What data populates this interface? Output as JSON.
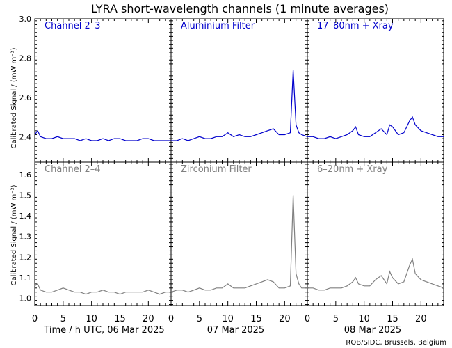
{
  "title": "LYRA short-wavelength channels (1 minute averages)",
  "ylabel": "Calibrated Signal / (mW m⁻²)",
  "credit": "ROB/SIDC, Brussels, Belgium",
  "colors": {
    "top": "#0000cc",
    "bottom": "#808080",
    "axis": "#000000"
  },
  "days": [
    {
      "label": "Time / h UTC, 06 Mar 2025"
    },
    {
      "label": "07 Mar 2025"
    },
    {
      "label": "08 Mar 2025"
    }
  ],
  "chart_data": [
    {
      "type": "line",
      "row": "top",
      "ylim": [
        2.27,
        3.0
      ],
      "yticks": [
        "2.4",
        "2.6",
        "2.8",
        "3.0"
      ],
      "xlim": [
        0,
        24
      ],
      "xticks": [
        "0",
        "5",
        "10",
        "15",
        "20"
      ],
      "panels": [
        {
          "label": "Channel 2–3",
          "x": [
            0,
            0.5,
            1,
            2,
            3,
            4,
            5,
            6,
            7,
            8,
            9,
            10,
            11,
            12,
            13,
            14,
            15,
            16,
            17,
            18,
            19,
            20,
            21,
            22,
            23,
            24
          ],
          "y": [
            2.41,
            2.43,
            2.4,
            2.39,
            2.39,
            2.4,
            2.39,
            2.39,
            2.39,
            2.38,
            2.39,
            2.38,
            2.38,
            2.39,
            2.38,
            2.39,
            2.39,
            2.38,
            2.38,
            2.38,
            2.39,
            2.39,
            2.38,
            2.38,
            2.38,
            2.38
          ]
        },
        {
          "label": "Aluminium Filter",
          "x": [
            0,
            1,
            2,
            3,
            4,
            5,
            6,
            7,
            8,
            9,
            10,
            11,
            12,
            13,
            14,
            15,
            16,
            17,
            18,
            19,
            20,
            21,
            21.5,
            22,
            22.5,
            23,
            24
          ],
          "y": [
            2.38,
            2.38,
            2.39,
            2.38,
            2.39,
            2.4,
            2.39,
            2.39,
            2.4,
            2.4,
            2.42,
            2.4,
            2.41,
            2.4,
            2.4,
            2.41,
            2.42,
            2.43,
            2.44,
            2.41,
            2.41,
            2.42,
            2.74,
            2.46,
            2.42,
            2.41,
            2.4
          ]
        },
        {
          "label": "17–80nm + Xray",
          "x": [
            0,
            1,
            2,
            3,
            4,
            5,
            6,
            7,
            8,
            8.5,
            9,
            10,
            11,
            12,
            13,
            14,
            14.5,
            15,
            16,
            17,
            18,
            18.5,
            19,
            20,
            21,
            22,
            23,
            24
          ],
          "y": [
            2.4,
            2.4,
            2.39,
            2.39,
            2.4,
            2.39,
            2.4,
            2.41,
            2.43,
            2.45,
            2.41,
            2.4,
            2.4,
            2.42,
            2.44,
            2.41,
            2.46,
            2.45,
            2.41,
            2.42,
            2.48,
            2.5,
            2.46,
            2.43,
            2.42,
            2.41,
            2.4,
            2.4
          ]
        }
      ]
    },
    {
      "type": "line",
      "row": "bottom",
      "ylim": [
        0.965,
        1.66
      ],
      "yticks": [
        "1.0",
        "1.1",
        "1.2",
        "1.3",
        "1.4",
        "1.5",
        "1.6"
      ],
      "xlim": [
        0,
        24
      ],
      "xticks": [
        "0",
        "5",
        "10",
        "15",
        "20"
      ],
      "panels": [
        {
          "label": "Channel 2–4",
          "x": [
            0,
            0.5,
            1,
            2,
            3,
            4,
            5,
            6,
            7,
            8,
            9,
            10,
            11,
            12,
            13,
            14,
            15,
            16,
            17,
            18,
            19,
            20,
            21,
            22,
            23,
            24
          ],
          "y": [
            1.06,
            1.07,
            1.04,
            1.03,
            1.03,
            1.04,
            1.05,
            1.04,
            1.03,
            1.03,
            1.02,
            1.03,
            1.03,
            1.04,
            1.03,
            1.03,
            1.02,
            1.03,
            1.03,
            1.03,
            1.03,
            1.04,
            1.03,
            1.02,
            1.03,
            1.03
          ]
        },
        {
          "label": "Zirconium Filter",
          "x": [
            0,
            1,
            2,
            3,
            4,
            5,
            6,
            7,
            8,
            9,
            10,
            11,
            12,
            13,
            14,
            15,
            16,
            17,
            18,
            19,
            20,
            21,
            21.5,
            22,
            22.5,
            23,
            24
          ],
          "y": [
            1.03,
            1.04,
            1.04,
            1.03,
            1.04,
            1.05,
            1.04,
            1.04,
            1.05,
            1.05,
            1.07,
            1.05,
            1.05,
            1.05,
            1.06,
            1.07,
            1.08,
            1.09,
            1.08,
            1.05,
            1.05,
            1.06,
            1.5,
            1.12,
            1.07,
            1.05,
            1.05
          ]
        },
        {
          "label": "6–20nm + Xray",
          "x": [
            0,
            1,
            2,
            3,
            4,
            5,
            6,
            7,
            8,
            8.5,
            9,
            10,
            11,
            12,
            13,
            14,
            14.5,
            15,
            16,
            17,
            18,
            18.5,
            19,
            20,
            21,
            22,
            23,
            24
          ],
          "y": [
            1.05,
            1.05,
            1.04,
            1.04,
            1.05,
            1.05,
            1.05,
            1.06,
            1.08,
            1.1,
            1.07,
            1.06,
            1.06,
            1.09,
            1.11,
            1.07,
            1.13,
            1.1,
            1.07,
            1.08,
            1.16,
            1.19,
            1.12,
            1.09,
            1.08,
            1.07,
            1.06,
            1.05
          ]
        }
      ]
    }
  ]
}
